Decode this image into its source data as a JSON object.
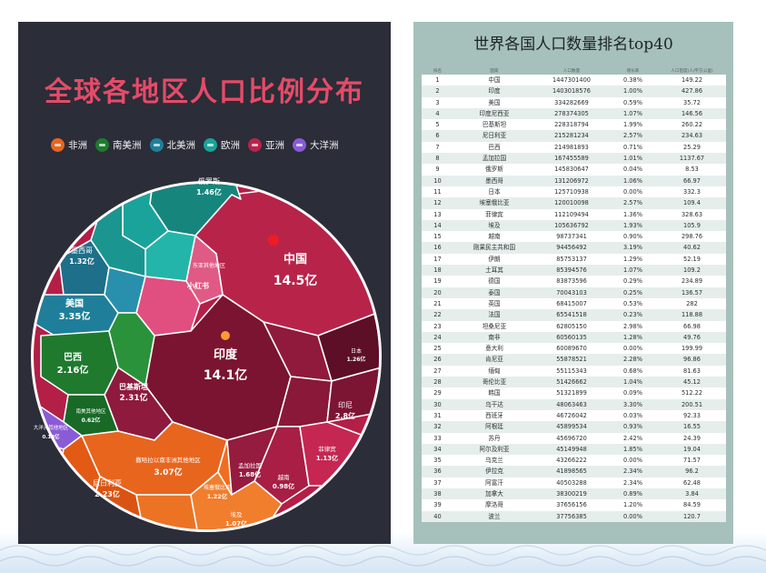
{
  "left": {
    "title": "全球各地区人口比例分布",
    "legend": [
      {
        "label": "非洲",
        "color": "#e8651e"
      },
      {
        "label": "南美洲",
        "color": "#1f7a2e"
      },
      {
        "label": "北美洲",
        "color": "#1f7f9a"
      },
      {
        "label": "欧洲",
        "color": "#1aa39a"
      },
      {
        "label": "亚洲",
        "color": "#b8234a"
      },
      {
        "label": "大洋洲",
        "color": "#8a5bd6"
      }
    ],
    "cells": [
      {
        "label": "中国",
        "value": "14.5亿"
      },
      {
        "label": "印度",
        "value": "14.1亿"
      },
      {
        "label": "美国",
        "value": "3.35亿"
      },
      {
        "label": "巴西",
        "value": "2.16亿"
      },
      {
        "label": "巴基斯坦",
        "value": "2.31亿"
      },
      {
        "label": "撒哈拉以南非洲其他地区",
        "value": "3.07亿"
      },
      {
        "label": "尼日利亚",
        "value": "2.23亿"
      },
      {
        "label": "印尼",
        "value": "2.8亿"
      },
      {
        "label": "孟加拉国",
        "value": "1.68亿"
      },
      {
        "label": "俄罗斯",
        "value": "1.46亿"
      },
      {
        "label": "墨西哥",
        "value": "1.32亿"
      },
      {
        "label": "日本",
        "value": "1.26亿"
      },
      {
        "label": "菲律宾",
        "value": "1.13亿"
      },
      {
        "label": "埃塞俄比亚",
        "value": "1.22亿"
      },
      {
        "label": "埃及",
        "value": "1.07亿"
      },
      {
        "label": "越南",
        "value": "0.98亿"
      },
      {
        "label": "南美其他地区",
        "value": "0.62亿"
      },
      {
        "label": "大洋洲其他地区",
        "value": "0.18亿"
      },
      {
        "label": "东亚其他地区",
        "value": ""
      },
      {
        "label": "小红书",
        "value": ""
      }
    ]
  },
  "right": {
    "title": "世界各国人口数量排名top40",
    "headers": [
      "排名",
      "国家",
      "人口数量",
      "增长率",
      "人口密度(人/平方公里)"
    ]
  },
  "chart_data": [
    {
      "type": "table",
      "title": "世界各国人口数量排名top40",
      "columns": [
        "排名",
        "国家",
        "人口数量",
        "增长率",
        "人口密度(人/平方公里)"
      ],
      "rows": [
        [
          "1",
          "中国",
          "1447301400",
          "0.38%",
          "149.22"
        ],
        [
          "2",
          "印度",
          "1403018576",
          "1.00%",
          "427.86"
        ],
        [
          "3",
          "美国",
          "334282669",
          "0.59%",
          "35.72"
        ],
        [
          "4",
          "印度尼西亚",
          "278374305",
          "1.07%",
          "146.56"
        ],
        [
          "5",
          "巴基斯坦",
          "228318794",
          "1.99%",
          "260.22"
        ],
        [
          "6",
          "尼日利亚",
          "215281234",
          "2.57%",
          "234.63"
        ],
        [
          "7",
          "巴西",
          "214981893",
          "0.71%",
          "25.29"
        ],
        [
          "8",
          "孟加拉国",
          "167455589",
          "1.01%",
          "1137.67"
        ],
        [
          "9",
          "俄罗斯",
          "145830647",
          "0.04%",
          "8.53"
        ],
        [
          "10",
          "墨西哥",
          "131206972",
          "1.06%",
          "66.97"
        ],
        [
          "11",
          "日本",
          "125710938",
          "0.00%",
          "332.3"
        ],
        [
          "12",
          "埃塞俄比亚",
          "120010098",
          "2.57%",
          "109.4"
        ],
        [
          "13",
          "菲律宾",
          "112109494",
          "1.36%",
          "328.63"
        ],
        [
          "14",
          "埃及",
          "105636792",
          "1.93%",
          "105.9"
        ],
        [
          "15",
          "越南",
          "98737341",
          "0.90%",
          "298.76"
        ],
        [
          "16",
          "刚果民主共和国",
          "94456492",
          "3.19%",
          "40.62"
        ],
        [
          "17",
          "伊朗",
          "85753137",
          "1.29%",
          "52.19"
        ],
        [
          "18",
          "土耳其",
          "85394576",
          "1.07%",
          "109.2"
        ],
        [
          "19",
          "德国",
          "83873596",
          "0.29%",
          "234.89"
        ],
        [
          "20",
          "泰国",
          "70043103",
          "0.25%",
          "136.57"
        ],
        [
          "21",
          "英国",
          "68415007",
          "0.53%",
          "282"
        ],
        [
          "22",
          "法国",
          "65541518",
          "0.23%",
          "118.88"
        ],
        [
          "23",
          "坦桑尼亚",
          "62805150",
          "2.98%",
          "66.98"
        ],
        [
          "24",
          "南非",
          "60560135",
          "1.28%",
          "49.76"
        ],
        [
          "25",
          "意大利",
          "60089670",
          "0.00%",
          "199.99"
        ],
        [
          "26",
          "肯尼亚",
          "55878521",
          "2.28%",
          "96.86"
        ],
        [
          "27",
          "缅甸",
          "55115343",
          "0.68%",
          "81.63"
        ],
        [
          "28",
          "哥伦比亚",
          "51426662",
          "1.04%",
          "45.12"
        ],
        [
          "29",
          "韩国",
          "51321899",
          "0.09%",
          "512.22"
        ],
        [
          "30",
          "乌干达",
          "48063463",
          "3.30%",
          "200.51"
        ],
        [
          "31",
          "西班牙",
          "46726042",
          "0.03%",
          "92.33"
        ],
        [
          "32",
          "阿根廷",
          "45899534",
          "0.93%",
          "16.55"
        ],
        [
          "33",
          "苏丹",
          "45696720",
          "2.42%",
          "24.39"
        ],
        [
          "34",
          "阿尔及利亚",
          "45149948",
          "1.85%",
          "19.04"
        ],
        [
          "35",
          "乌克兰",
          "43266222",
          "0.00%",
          "71.57"
        ],
        [
          "36",
          "伊拉克",
          "41898565",
          "2.34%",
          "96.2"
        ],
        [
          "37",
          "阿富汗",
          "40503288",
          "2.34%",
          "62.48"
        ],
        [
          "38",
          "加拿大",
          "38300219",
          "0.89%",
          "3.84"
        ],
        [
          "39",
          "摩洛哥",
          "37656156",
          "1.20%",
          "84.59"
        ],
        [
          "40",
          "波兰",
          "37756385",
          "0.00%",
          "120.7"
        ]
      ]
    }
  ]
}
